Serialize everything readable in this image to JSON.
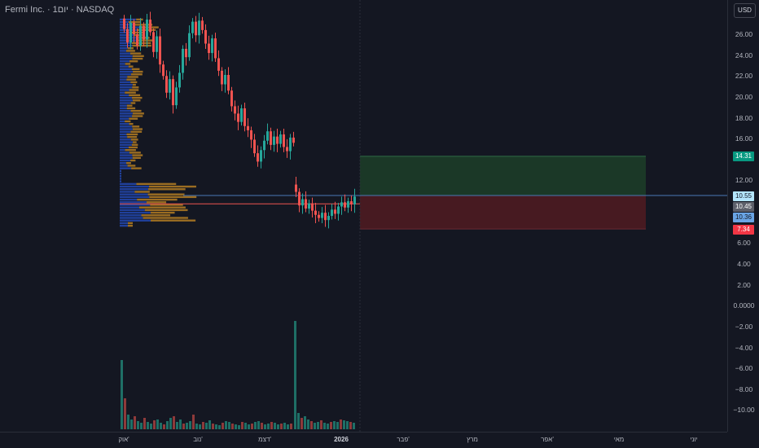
{
  "header": {
    "symbol_title": "Fermi Inc. · 1יום · NASDAQ"
  },
  "price_axis": {
    "currency_label": "USD",
    "ticks": [
      "26.00",
      "24.00",
      "22.00",
      "20.00",
      "18.00",
      "16.00",
      "12.00",
      "6.00",
      "4.00",
      "2.00",
      "0.0000",
      "−2.00",
      "−4.00",
      "−6.00",
      "−8.00",
      "−10.00"
    ],
    "tags": [
      {
        "label": "14.31",
        "value": 14.31,
        "bg": "#089981",
        "fg": "#ffffff"
      },
      {
        "label": "10.55",
        "value": 10.55,
        "bg": "#b3e5fc",
        "fg": "#131722"
      },
      {
        "label": "10.45",
        "value": 10.45,
        "bg": "#5d606b",
        "fg": "#ffffff"
      },
      {
        "label": "10.36",
        "value": 10.36,
        "bg": "#6aa5e6",
        "fg": "#131722"
      },
      {
        "label": "7.34",
        "value": 7.34,
        "bg": "#f23645",
        "fg": "#ffffff"
      }
    ]
  },
  "time_axis": {
    "labels": [
      "אוק'",
      "נוב'",
      "דצמ'",
      "2026",
      "פבר'",
      "מרץ",
      "אפר'",
      "מאי",
      "יוני"
    ]
  },
  "chart_data": {
    "type": "candlestick",
    "ylim": [
      -11,
      28
    ],
    "last_price": 10.45,
    "horizontal_line": 10.55,
    "poc_line": 9.75,
    "position": {
      "entry": 10.55,
      "target": 14.31,
      "stop": 7.34
    },
    "colors": {
      "up": "#26a69a",
      "down": "#ef5350",
      "vol_up": "#1e6f66",
      "vol_down": "#8e3a3a",
      "profile_blue": "#2962ff",
      "profile_orange": "#f5a623",
      "profile_line": "#4a5a8a",
      "target_zone": "#1b3a28",
      "stop_zone": "#4a1a22"
    }
  }
}
